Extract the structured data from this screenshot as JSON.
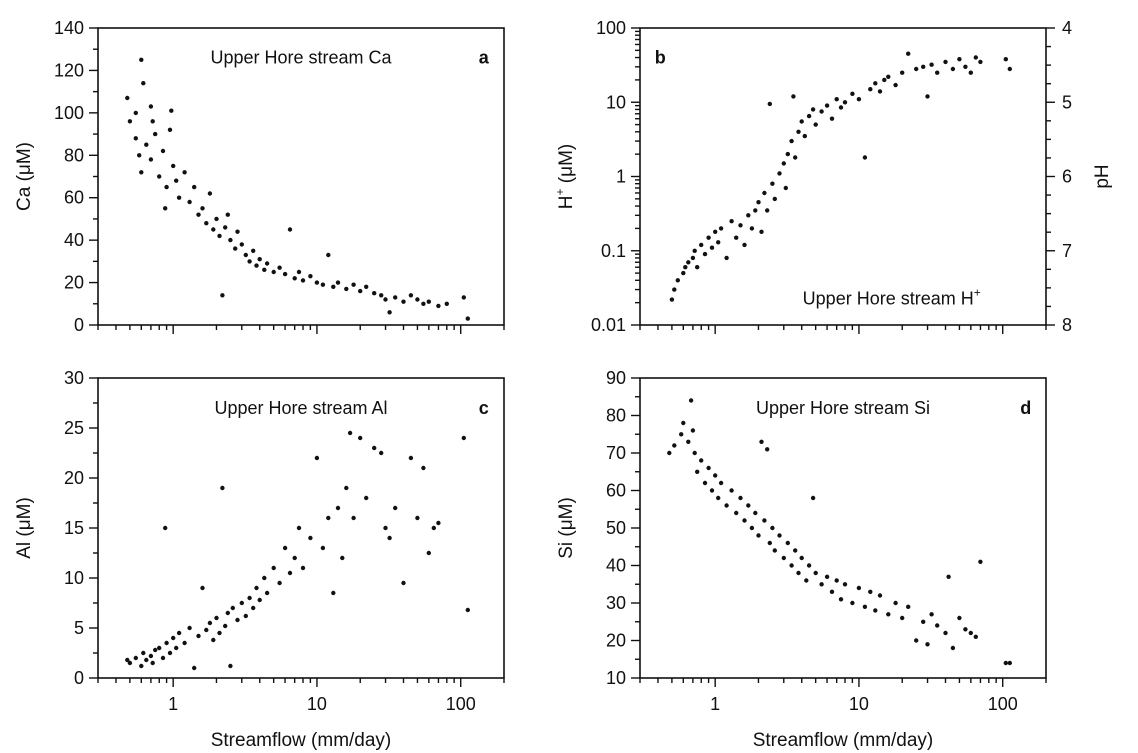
{
  "chart_data": [
    {
      "id": "a",
      "type": "scatter",
      "title": "Upper Hore stream Ca",
      "letter": "a",
      "xlabel": "",
      "ylabel": "Ca (μM)",
      "xscale": "log",
      "xlim": [
        0.3,
        200
      ],
      "ylim": [
        0,
        140
      ],
      "xticks": [
        1,
        10,
        100
      ],
      "xtick_labels": [
        "",
        "",
        ""
      ],
      "yticks": [
        0,
        20,
        40,
        60,
        80,
        100,
        120,
        140
      ],
      "ytick_labels": [
        "0",
        "20",
        "40",
        "60",
        "80",
        "100",
        "120",
        "140"
      ],
      "marker_color": "#111111",
      "points": [
        [
          0.48,
          107
        ],
        [
          0.5,
          96
        ],
        [
          0.55,
          100
        ],
        [
          0.6,
          125
        ],
        [
          0.62,
          114
        ],
        [
          0.7,
          103
        ],
        [
          0.72,
          96
        ],
        [
          0.55,
          88
        ],
        [
          0.58,
          80
        ],
        [
          0.6,
          72
        ],
        [
          0.65,
          85
        ],
        [
          0.7,
          78
        ],
        [
          0.75,
          90
        ],
        [
          0.8,
          70
        ],
        [
          0.85,
          82
        ],
        [
          0.9,
          65
        ],
        [
          0.95,
          92
        ],
        [
          0.97,
          101
        ],
        [
          1.0,
          75
        ],
        [
          1.05,
          68
        ],
        [
          1.1,
          60
        ],
        [
          0.88,
          55
        ],
        [
          1.2,
          72
        ],
        [
          1.3,
          58
        ],
        [
          1.4,
          65
        ],
        [
          1.5,
          52
        ],
        [
          1.6,
          55
        ],
        [
          1.7,
          48
        ],
        [
          1.8,
          62
        ],
        [
          1.9,
          45
        ],
        [
          2.0,
          50
        ],
        [
          2.1,
          42
        ],
        [
          2.2,
          14
        ],
        [
          2.3,
          46
        ],
        [
          2.4,
          52
        ],
        [
          2.5,
          40
        ],
        [
          2.7,
          36
        ],
        [
          2.8,
          44
        ],
        [
          3.0,
          38
        ],
        [
          3.2,
          33
        ],
        [
          3.4,
          30
        ],
        [
          3.6,
          35
        ],
        [
          3.8,
          28
        ],
        [
          4.0,
          31
        ],
        [
          4.3,
          26
        ],
        [
          4.5,
          29
        ],
        [
          5.0,
          25
        ],
        [
          5.5,
          27
        ],
        [
          6.0,
          24
        ],
        [
          6.5,
          45
        ],
        [
          7.0,
          22
        ],
        [
          7.5,
          25
        ],
        [
          8.0,
          21
        ],
        [
          9.0,
          23
        ],
        [
          10,
          20
        ],
        [
          11,
          19
        ],
        [
          12,
          33
        ],
        [
          13,
          18
        ],
        [
          14,
          20
        ],
        [
          16,
          17
        ],
        [
          18,
          19
        ],
        [
          20,
          16
        ],
        [
          22,
          18
        ],
        [
          25,
          15
        ],
        [
          28,
          14
        ],
        [
          30,
          12
        ],
        [
          32,
          6
        ],
        [
          35,
          13
        ],
        [
          40,
          11
        ],
        [
          45,
          14
        ],
        [
          50,
          12
        ],
        [
          55,
          10
        ],
        [
          60,
          11
        ],
        [
          70,
          9
        ],
        [
          80,
          10
        ],
        [
          105,
          13
        ],
        [
          112,
          3
        ]
      ]
    },
    {
      "id": "b",
      "type": "scatter",
      "title": "Upper Hore stream H",
      "title_superscript": "+",
      "letter": "b",
      "xlabel": "",
      "ylabel": "H",
      "ylabel_superscript": "+",
      "ylabel_suffix": " (μM)",
      "y2label": "pH",
      "xscale": "log",
      "yscale": "log",
      "xlim": [
        0.3,
        200
      ],
      "ylim": [
        0.01,
        100
      ],
      "xticks": [
        1,
        10,
        100
      ],
      "xtick_labels": [
        "",
        "",
        ""
      ],
      "yticks": [
        0.01,
        0.1,
        1,
        10,
        100
      ],
      "ytick_labels": [
        "0.01",
        "0.1",
        "1",
        "10",
        "100"
      ],
      "y2ticks": [
        4,
        5,
        6,
        7,
        8
      ],
      "y2tick_labels": [
        "4",
        "5",
        "6",
        "7",
        "8"
      ],
      "marker_color": "#111111",
      "points": [
        [
          0.5,
          0.022
        ],
        [
          0.52,
          0.03
        ],
        [
          0.55,
          0.04
        ],
        [
          0.6,
          0.05
        ],
        [
          0.62,
          0.06
        ],
        [
          0.65,
          0.07
        ],
        [
          0.7,
          0.08
        ],
        [
          0.72,
          0.1
        ],
        [
          0.75,
          0.06
        ],
        [
          0.8,
          0.12
        ],
        [
          0.85,
          0.09
        ],
        [
          0.9,
          0.15
        ],
        [
          0.95,
          0.11
        ],
        [
          1.0,
          0.18
        ],
        [
          1.05,
          0.13
        ],
        [
          1.1,
          0.2
        ],
        [
          1.2,
          0.08
        ],
        [
          1.3,
          0.25
        ],
        [
          1.4,
          0.15
        ],
        [
          1.5,
          0.22
        ],
        [
          1.6,
          0.12
        ],
        [
          1.7,
          0.3
        ],
        [
          1.8,
          0.2
        ],
        [
          1.9,
          0.35
        ],
        [
          2.0,
          0.45
        ],
        [
          2.1,
          0.18
        ],
        [
          2.2,
          0.6
        ],
        [
          2.3,
          0.35
        ],
        [
          2.4,
          9.5
        ],
        [
          2.5,
          0.8
        ],
        [
          2.6,
          0.5
        ],
        [
          2.8,
          1.1
        ],
        [
          3.0,
          1.5
        ],
        [
          3.1,
          0.7
        ],
        [
          3.2,
          2.0
        ],
        [
          3.4,
          3.0
        ],
        [
          3.5,
          12
        ],
        [
          3.6,
          1.8
        ],
        [
          3.8,
          4.0
        ],
        [
          4.0,
          5.5
        ],
        [
          4.2,
          3.5
        ],
        [
          4.5,
          6.5
        ],
        [
          4.8,
          8.0
        ],
        [
          5.0,
          5.0
        ],
        [
          5.5,
          7.5
        ],
        [
          6.0,
          9.0
        ],
        [
          6.5,
          6.0
        ],
        [
          7.0,
          11
        ],
        [
          7.5,
          8.5
        ],
        [
          8.0,
          10
        ],
        [
          9.0,
          13
        ],
        [
          10,
          11
        ],
        [
          11,
          1.8
        ],
        [
          12,
          15
        ],
        [
          13,
          18
        ],
        [
          14,
          14
        ],
        [
          15,
          20
        ],
        [
          16,
          22
        ],
        [
          18,
          17
        ],
        [
          20,
          25
        ],
        [
          22,
          45
        ],
        [
          25,
          28
        ],
        [
          28,
          30
        ],
        [
          30,
          12
        ],
        [
          32,
          32
        ],
        [
          35,
          25
        ],
        [
          40,
          35
        ],
        [
          45,
          28
        ],
        [
          50,
          38
        ],
        [
          55,
          30
        ],
        [
          60,
          25
        ],
        [
          65,
          40
        ],
        [
          70,
          35
        ],
        [
          105,
          38
        ],
        [
          112,
          28
        ]
      ],
      "annotation": {
        "text": "Upper Hore stream H",
        "superscript": "+"
      }
    },
    {
      "id": "c",
      "type": "scatter",
      "title": "Upper Hore stream Al",
      "letter": "c",
      "xlabel": "Streamflow (mm/day)",
      "ylabel": "Al (μM)",
      "xscale": "log",
      "xlim": [
        0.3,
        200
      ],
      "ylim": [
        0,
        30
      ],
      "xticks": [
        1,
        10,
        100
      ],
      "xtick_labels": [
        "1",
        "10",
        "100"
      ],
      "yticks": [
        0,
        5,
        10,
        15,
        20,
        25,
        30
      ],
      "ytick_labels": [
        "0",
        "5",
        "10",
        "15",
        "20",
        "25",
        "30"
      ],
      "marker_color": "#111111",
      "points": [
        [
          0.48,
          1.8
        ],
        [
          0.5,
          1.5
        ],
        [
          0.55,
          2.0
        ],
        [
          0.6,
          1.2
        ],
        [
          0.62,
          2.5
        ],
        [
          0.65,
          1.8
        ],
        [
          0.7,
          2.2
        ],
        [
          0.72,
          1.5
        ],
        [
          0.75,
          2.8
        ],
        [
          0.8,
          3.0
        ],
        [
          0.85,
          2.0
        ],
        [
          0.88,
          15
        ],
        [
          0.9,
          3.5
        ],
        [
          0.95,
          2.5
        ],
        [
          1.0,
          4.0
        ],
        [
          1.05,
          3.0
        ],
        [
          1.1,
          4.5
        ],
        [
          1.2,
          3.5
        ],
        [
          1.3,
          5.0
        ],
        [
          1.4,
          1.0
        ],
        [
          1.5,
          4.2
        ],
        [
          1.6,
          9.0
        ],
        [
          1.7,
          4.8
        ],
        [
          1.8,
          5.5
        ],
        [
          1.9,
          3.8
        ],
        [
          2.0,
          6.0
        ],
        [
          2.1,
          4.5
        ],
        [
          2.2,
          19.0
        ],
        [
          2.3,
          5.2
        ],
        [
          2.4,
          6.5
        ],
        [
          2.5,
          1.2
        ],
        [
          2.6,
          7.0
        ],
        [
          2.8,
          5.8
        ],
        [
          3.0,
          7.5
        ],
        [
          3.2,
          6.2
        ],
        [
          3.4,
          8.0
        ],
        [
          3.6,
          7.0
        ],
        [
          3.8,
          9.0
        ],
        [
          4.0,
          7.8
        ],
        [
          4.3,
          10
        ],
        [
          4.5,
          8.5
        ],
        [
          5.0,
          11
        ],
        [
          5.5,
          9.5
        ],
        [
          6.0,
          13
        ],
        [
          6.5,
          10.5
        ],
        [
          7.0,
          12
        ],
        [
          7.5,
          15
        ],
        [
          8.0,
          11
        ],
        [
          9.0,
          14
        ],
        [
          10,
          22
        ],
        [
          11,
          13
        ],
        [
          12,
          16
        ],
        [
          13,
          8.5
        ],
        [
          14,
          17
        ],
        [
          15,
          12
        ],
        [
          16,
          19
        ],
        [
          17,
          24.5
        ],
        [
          18,
          16
        ],
        [
          20,
          24
        ],
        [
          22,
          18
        ],
        [
          25,
          23
        ],
        [
          28,
          22.5
        ],
        [
          30,
          15
        ],
        [
          32,
          14
        ],
        [
          35,
          17
        ],
        [
          40,
          9.5
        ],
        [
          45,
          22
        ],
        [
          50,
          16
        ],
        [
          55,
          21
        ],
        [
          60,
          12.5
        ],
        [
          65,
          15
        ],
        [
          70,
          15.5
        ],
        [
          105,
          24
        ],
        [
          112,
          6.8
        ]
      ]
    },
    {
      "id": "d",
      "type": "scatter",
      "title": "Upper Hore stream Si",
      "letter": "d",
      "xlabel": "Streamflow (mm/day)",
      "ylabel": "Si (μM)",
      "xscale": "log",
      "xlim": [
        0.3,
        200
      ],
      "ylim": [
        10,
        90
      ],
      "xticks": [
        1,
        10,
        100
      ],
      "xtick_labels": [
        "1",
        "10",
        "100"
      ],
      "yticks": [
        10,
        20,
        30,
        40,
        50,
        60,
        70,
        80,
        90
      ],
      "ytick_labels": [
        "10",
        "20",
        "30",
        "40",
        "50",
        "60",
        "70",
        "80",
        "90"
      ],
      "marker_color": "#111111",
      "points": [
        [
          0.48,
          70
        ],
        [
          0.52,
          72
        ],
        [
          0.58,
          75
        ],
        [
          0.6,
          78
        ],
        [
          0.65,
          73
        ],
        [
          0.68,
          84
        ],
        [
          0.7,
          76
        ],
        [
          0.72,
          70
        ],
        [
          0.75,
          65
        ],
        [
          0.8,
          68
        ],
        [
          0.85,
          62
        ],
        [
          0.9,
          66
        ],
        [
          0.95,
          60
        ],
        [
          1.0,
          64
        ],
        [
          1.05,
          58
        ],
        [
          1.1,
          62
        ],
        [
          1.2,
          56
        ],
        [
          1.3,
          60
        ],
        [
          1.4,
          54
        ],
        [
          1.5,
          58
        ],
        [
          1.6,
          52
        ],
        [
          1.7,
          56
        ],
        [
          1.8,
          50
        ],
        [
          1.9,
          54
        ],
        [
          2.0,
          48
        ],
        [
          2.1,
          73
        ],
        [
          2.2,
          52
        ],
        [
          2.3,
          71
        ],
        [
          2.4,
          46
        ],
        [
          2.5,
          50
        ],
        [
          2.6,
          44
        ],
        [
          2.8,
          48
        ],
        [
          3.0,
          42
        ],
        [
          3.2,
          46
        ],
        [
          3.4,
          40
        ],
        [
          3.6,
          44
        ],
        [
          3.8,
          38
        ],
        [
          4.0,
          42
        ],
        [
          4.3,
          36
        ],
        [
          4.5,
          40
        ],
        [
          4.8,
          58
        ],
        [
          5.0,
          38
        ],
        [
          5.5,
          35
        ],
        [
          6.0,
          37
        ],
        [
          6.5,
          33
        ],
        [
          7.0,
          36
        ],
        [
          7.5,
          31
        ],
        [
          8.0,
          35
        ],
        [
          9.0,
          30
        ],
        [
          10,
          34
        ],
        [
          11,
          29
        ],
        [
          12,
          33
        ],
        [
          13,
          28
        ],
        [
          14,
          32
        ],
        [
          16,
          27
        ],
        [
          18,
          30
        ],
        [
          20,
          26
        ],
        [
          22,
          29
        ],
        [
          25,
          20
        ],
        [
          28,
          25
        ],
        [
          30,
          19
        ],
        [
          32,
          27
        ],
        [
          35,
          24
        ],
        [
          40,
          22
        ],
        [
          42,
          37
        ],
        [
          45,
          18
        ],
        [
          50,
          26
        ],
        [
          55,
          23
        ],
        [
          60,
          22
        ],
        [
          65,
          21
        ],
        [
          70,
          41
        ],
        [
          105,
          14
        ],
        [
          112,
          14
        ]
      ]
    }
  ]
}
